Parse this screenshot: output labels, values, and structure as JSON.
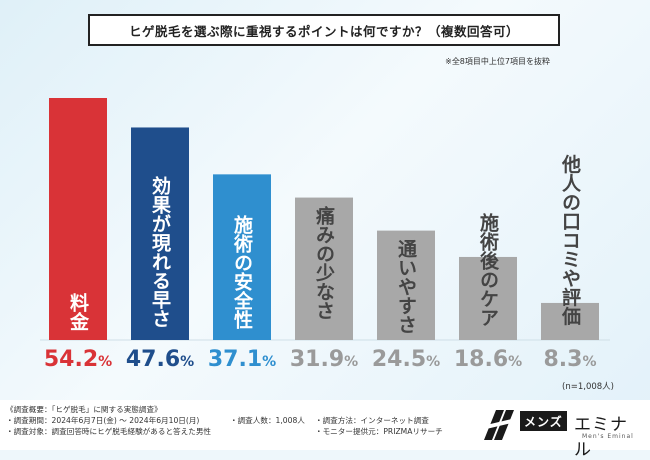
{
  "chart_data": {
    "type": "bar",
    "title": "ヒゲ脱毛を選ぶ際に重視するポイントは何ですか？（複数回答可）",
    "note": "※全8項目中上位7項目を抜粋",
    "categories": [
      "料金",
      "効果が現れる早さ",
      "施術の安全性",
      "痛みの少なさ",
      "通いやすさ",
      "施術後のケア",
      "他人の口コミや評価"
    ],
    "values": [
      54.2,
      47.6,
      37.1,
      31.9,
      24.5,
      18.6,
      8.3
    ],
    "value_labels": [
      "54.2%",
      "47.6%",
      "37.1%",
      "31.9%",
      "24.5%",
      "18.6%",
      "8.3%"
    ],
    "colors": [
      "#d93337",
      "#1f4e8c",
      "#2f8fcf",
      "#a8a8a8",
      "#a8a8a8",
      "#a8a8a8",
      "#a8a8a8"
    ],
    "label_colors": [
      "#d93337",
      "#1f4e8c",
      "#2f8fcf",
      "#9a9a9a",
      "#9a9a9a",
      "#9a9a9a",
      "#9a9a9a"
    ],
    "ylim": [
      0,
      54.2
    ],
    "sample_size": "(n=1,008人)"
  },
  "survey": {
    "overview": "《調査概要：「ヒゲ脱毛」に関する実態調査》",
    "period": "・調査期間：2024年6月7日(金) ～ 2024年6月10日(月)",
    "respondents": "・調査人数：1,008人",
    "method": "・調査方法：インターネット調査",
    "target": "・調査対象：調査回答時にヒゲ脱毛経験があると答えた男性",
    "provider": "・モニター提供元：PRIZMAリサーチ"
  },
  "logo": {
    "box_text": "メンズ",
    "word": "エミナル",
    "tagline": "Men's Eminal"
  }
}
